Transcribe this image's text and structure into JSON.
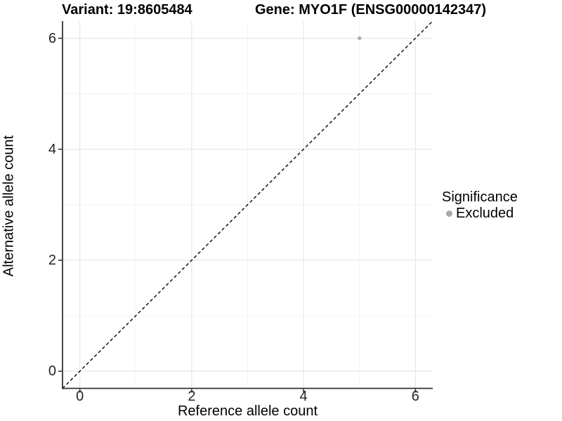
{
  "titles": {
    "variant": "Variant: 19:8605484",
    "gene": "Gene: MYO1F (ENSG00000142347)"
  },
  "chart_data": {
    "type": "scatter",
    "title_left": "Variant: 19:8605484",
    "title_right": "Gene: MYO1F (ENSG00000142347)",
    "xlabel": "Reference allele count",
    "ylabel": "Alternative allele count",
    "xlim": [
      -0.31,
      6.31
    ],
    "ylim": [
      -0.31,
      6.31
    ],
    "x_ticks": [
      0,
      2,
      4,
      6
    ],
    "y_ticks": [
      0,
      2,
      4,
      6
    ],
    "x_minor_gridlines": [
      1,
      3,
      5
    ],
    "y_minor_gridlines": [
      1,
      3,
      5
    ],
    "grid": true,
    "reference_line": {
      "type": "identity y=x",
      "style": "dashed",
      "color": "#000000"
    },
    "series": [
      {
        "name": "Excluded",
        "color": "#b0b0b0",
        "points": [
          {
            "x": 5,
            "y": 6
          }
        ]
      }
    ],
    "legend": {
      "title": "Significance",
      "position": "right",
      "entries": [
        {
          "label": "Excluded",
          "color": "#a9a9a9"
        }
      ]
    },
    "colors": {
      "major_gridline": "#e5e5e5",
      "minor_gridline": "#f3f3f3",
      "axis_line": "#333333",
      "tick_label": "#262626",
      "point": "#b0b0b0"
    }
  }
}
